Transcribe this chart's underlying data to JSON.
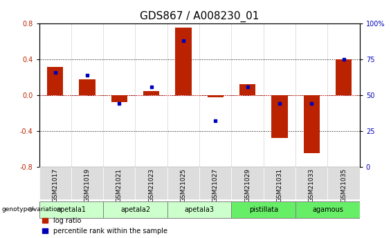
{
  "title": "GDS867 / A008230_01",
  "samples": [
    "GSM21017",
    "GSM21019",
    "GSM21021",
    "GSM21023",
    "GSM21025",
    "GSM21027",
    "GSM21029",
    "GSM21031",
    "GSM21033",
    "GSM21035"
  ],
  "log_ratio": [
    0.32,
    0.18,
    -0.08,
    0.05,
    0.76,
    -0.02,
    0.12,
    -0.48,
    -0.65,
    0.4
  ],
  "percentile_rank_raw": [
    66,
    64,
    44,
    56,
    88,
    32,
    56,
    44,
    44,
    75
  ],
  "groups": [
    {
      "label": "apetala1",
      "indices": [
        0,
        1
      ],
      "color": "#ccffcc"
    },
    {
      "label": "apetala2",
      "indices": [
        2,
        3
      ],
      "color": "#ccffcc"
    },
    {
      "label": "apetala3",
      "indices": [
        4,
        5
      ],
      "color": "#ccffcc"
    },
    {
      "label": "pistillata",
      "indices": [
        6,
        7
      ],
      "color": "#66ee66"
    },
    {
      "label": "agamous",
      "indices": [
        8,
        9
      ],
      "color": "#66ee66"
    }
  ],
  "ylim": [
    -0.8,
    0.8
  ],
  "yticks_left": [
    -0.8,
    -0.4,
    0.0,
    0.4,
    0.8
  ],
  "y2ticks_pct": [
    0,
    25,
    50,
    75,
    100
  ],
  "bar_color": "#bb2200",
  "dot_color": "#0000bb",
  "bg_color": "#ffffff",
  "gsm_box_color": "#dddddd",
  "title_fontsize": 11,
  "tick_fontsize": 7,
  "group_fontsize": 8,
  "legend_fontsize": 7,
  "genotype_label": "genotype/variation"
}
